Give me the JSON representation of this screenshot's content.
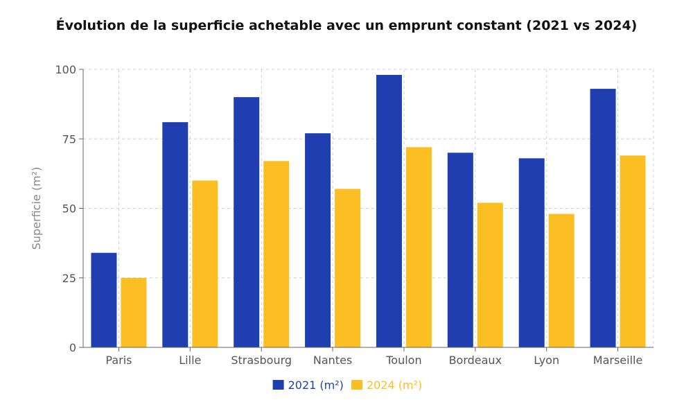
{
  "chart_data": {
    "type": "bar",
    "title": "Évolution de la superficie achetable avec un emprunt constant (2021 vs 2024)",
    "xlabel": "",
    "ylabel": "Superficie (m²)",
    "categories": [
      "Paris",
      "Lille",
      "Strasbourg",
      "Nantes",
      "Toulon",
      "Bordeaux",
      "Lyon",
      "Marseille"
    ],
    "series": [
      {
        "name": "2021 (m²)",
        "color": "#1f3fb0",
        "values": [
          34,
          81,
          90,
          77,
          98,
          70,
          68,
          93
        ]
      },
      {
        "name": "2024 (m²)",
        "color": "#fbbf24",
        "values": [
          25,
          60,
          67,
          57,
          72,
          52,
          48,
          69
        ]
      }
    ],
    "ylim": [
      0,
      100
    ],
    "yticks": [
      0,
      25,
      50,
      75,
      100
    ],
    "grid": true,
    "legend_position": "bottom"
  }
}
